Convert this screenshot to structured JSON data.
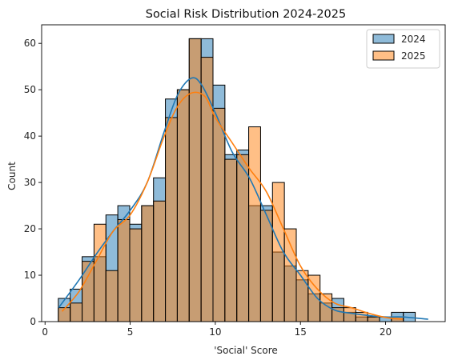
{
  "chart_data": {
    "type": "histogram",
    "title": "Social Risk Distribution 2024-2025",
    "xlabel": "'Social' Score",
    "ylabel": "Count",
    "xlim": [
      -0.2,
      23.5
    ],
    "ylim": [
      0,
      64
    ],
    "xticks": [
      0,
      5,
      10,
      15,
      20
    ],
    "yticks": [
      0,
      10,
      20,
      30,
      40,
      50,
      60
    ],
    "legend_position": "top-right",
    "bin_start": 0.78,
    "bin_width": 0.6987,
    "series": [
      {
        "name": "2024",
        "color": "#1f77b4",
        "counts": [
          5,
          7,
          14,
          14,
          23,
          25,
          21,
          25,
          31,
          48,
          50,
          61,
          61,
          51,
          36,
          37,
          25,
          25,
          15,
          12,
          9,
          6,
          4,
          5,
          2,
          1,
          1,
          1,
          2,
          2
        ],
        "kde": [
          [
            0.8,
            3.0
          ],
          [
            2,
            9
          ],
          [
            3,
            14.5
          ],
          [
            4,
            19.5
          ],
          [
            5,
            24
          ],
          [
            6,
            30
          ],
          [
            7,
            41
          ],
          [
            7.8,
            49
          ],
          [
            8.6,
            52.5
          ],
          [
            9.2,
            51
          ],
          [
            10,
            45
          ],
          [
            11,
            36.5
          ],
          [
            12,
            31
          ],
          [
            13,
            23
          ],
          [
            14,
            15
          ],
          [
            15,
            10
          ],
          [
            16,
            5
          ],
          [
            17,
            2.5
          ],
          [
            18,
            1.8
          ],
          [
            19,
            1.3
          ],
          [
            20,
            1.0
          ],
          [
            21,
            1.0
          ],
          [
            22.5,
            0.5
          ]
        ]
      },
      {
        "name": "2025",
        "color": "#ff7f0e",
        "counts": [
          3,
          4,
          13,
          21,
          11,
          22,
          20,
          25,
          26,
          44,
          50,
          61,
          57,
          46,
          35,
          36,
          42,
          24,
          30,
          20,
          11,
          10,
          6,
          3,
          3,
          2,
          1,
          0,
          1,
          0
        ],
        "kde": [
          [
            1.0,
            2.2
          ],
          [
            2,
            6.5
          ],
          [
            3,
            13
          ],
          [
            4,
            19.5
          ],
          [
            5,
            23
          ],
          [
            6,
            30
          ],
          [
            7,
            40
          ],
          [
            7.8,
            46.5
          ],
          [
            8.6,
            49.3
          ],
          [
            9.4,
            48.5
          ],
          [
            10,
            44
          ],
          [
            11,
            38.5
          ],
          [
            12,
            33
          ],
          [
            13,
            28
          ],
          [
            14,
            20
          ],
          [
            15,
            12
          ],
          [
            16,
            7
          ],
          [
            17,
            4
          ],
          [
            18,
            3
          ],
          [
            19,
            1.8
          ],
          [
            20,
            0.9
          ],
          [
            21,
            0.5
          ]
        ]
      }
    ]
  }
}
